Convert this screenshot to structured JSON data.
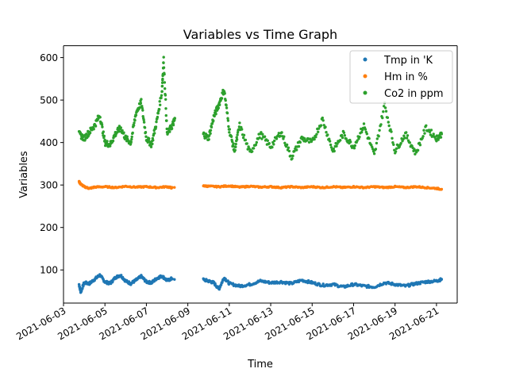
{
  "chart_data": {
    "type": "scatter",
    "title": "Variables vs Time Graph",
    "xlabel": "Time",
    "ylabel": "Variables",
    "x_range": [
      "2021-06-03T00:00",
      "2021-06-22T00:00"
    ],
    "ylim": [
      22,
      628
    ],
    "x_ticks": [
      "2021-06-03",
      "2021-06-05",
      "2021-06-07",
      "2021-06-09",
      "2021-06-11",
      "2021-06-13",
      "2021-06-15",
      "2021-06-17",
      "2021-06-19",
      "2021-06-21"
    ],
    "y_ticks": [
      100,
      200,
      300,
      400,
      500,
      600
    ],
    "grid": false,
    "legend_position": "upper right",
    "x_tick_rotation": 30,
    "data_gap": [
      "2021-06-08T09:00",
      "2021-06-09T16:00"
    ],
    "series": [
      {
        "name": "Tmp in 'K",
        "color": "#1f77b4",
        "points": [
          [
            "2021-06-03T18:00",
            66
          ],
          [
            "2021-06-03T20:00",
            48
          ],
          [
            "2021-06-04T00:00",
            70
          ],
          [
            "2021-06-04T06:00",
            68
          ],
          [
            "2021-06-04T12:00",
            78
          ],
          [
            "2021-06-04T18:00",
            88
          ],
          [
            "2021-06-05T00:00",
            72
          ],
          [
            "2021-06-05T06:00",
            68
          ],
          [
            "2021-06-05T12:00",
            82
          ],
          [
            "2021-06-05T18:00",
            88
          ],
          [
            "2021-06-06T00:00",
            74
          ],
          [
            "2021-06-06T06:00",
            68
          ],
          [
            "2021-06-06T12:00",
            76
          ],
          [
            "2021-06-06T18:00",
            85
          ],
          [
            "2021-06-07T00:00",
            72
          ],
          [
            "2021-06-07T06:00",
            70
          ],
          [
            "2021-06-07T12:00",
            80
          ],
          [
            "2021-06-07T18:00",
            86
          ],
          [
            "2021-06-08T00:00",
            75
          ],
          [
            "2021-06-08T06:00",
            80
          ],
          [
            "2021-06-09T18:00",
            77
          ],
          [
            "2021-06-10T00:00",
            74
          ],
          [
            "2021-06-10T06:00",
            70
          ],
          [
            "2021-06-10T12:00",
            55
          ],
          [
            "2021-06-10T18:00",
            82
          ],
          [
            "2021-06-11T00:00",
            68
          ],
          [
            "2021-06-11T12:00",
            62
          ],
          [
            "2021-06-12T00:00",
            66
          ],
          [
            "2021-06-12T12:00",
            74
          ],
          [
            "2021-06-13T00:00",
            70
          ],
          [
            "2021-06-13T12:00",
            72
          ],
          [
            "2021-06-14T00:00",
            68
          ],
          [
            "2021-06-14T12:00",
            76
          ],
          [
            "2021-06-15T00:00",
            70
          ],
          [
            "2021-06-15T12:00",
            64
          ],
          [
            "2021-06-16T00:00",
            66
          ],
          [
            "2021-06-16T12:00",
            60
          ],
          [
            "2021-06-17T00:00",
            66
          ],
          [
            "2021-06-17T12:00",
            62
          ],
          [
            "2021-06-18T00:00",
            60
          ],
          [
            "2021-06-18T12:00",
            70
          ],
          [
            "2021-06-19T00:00",
            66
          ],
          [
            "2021-06-19T12:00",
            62
          ],
          [
            "2021-06-20T00:00",
            68
          ],
          [
            "2021-06-20T12:00",
            72
          ],
          [
            "2021-06-21T00:00",
            74
          ],
          [
            "2021-06-21T06:00",
            78
          ]
        ]
      },
      {
        "name": "Hm in %",
        "color": "#ff7f0e",
        "points": [
          [
            "2021-06-03T18:00",
            308
          ],
          [
            "2021-06-03T20:00",
            302
          ],
          [
            "2021-06-04T00:00",
            296
          ],
          [
            "2021-06-04T06:00",
            292
          ],
          [
            "2021-06-04T12:00",
            295
          ],
          [
            "2021-06-05T00:00",
            296
          ],
          [
            "2021-06-05T12:00",
            294
          ],
          [
            "2021-06-06T00:00",
            297
          ],
          [
            "2021-06-06T12:00",
            295
          ],
          [
            "2021-06-07T00:00",
            296
          ],
          [
            "2021-06-07T12:00",
            294
          ],
          [
            "2021-06-08T00:00",
            296
          ],
          [
            "2021-06-08T06:00",
            293
          ],
          [
            "2021-06-09T18:00",
            298
          ],
          [
            "2021-06-10T00:00",
            297
          ],
          [
            "2021-06-10T12:00",
            296
          ],
          [
            "2021-06-11T00:00",
            298
          ],
          [
            "2021-06-11T12:00",
            295
          ],
          [
            "2021-06-12T00:00",
            297
          ],
          [
            "2021-06-12T12:00",
            295
          ],
          [
            "2021-06-13T00:00",
            296
          ],
          [
            "2021-06-13T12:00",
            294
          ],
          [
            "2021-06-14T00:00",
            296
          ],
          [
            "2021-06-14T12:00",
            294
          ],
          [
            "2021-06-15T00:00",
            296
          ],
          [
            "2021-06-15T12:00",
            294
          ],
          [
            "2021-06-16T00:00",
            296
          ],
          [
            "2021-06-16T12:00",
            294
          ],
          [
            "2021-06-17T00:00",
            296
          ],
          [
            "2021-06-17T12:00",
            294
          ],
          [
            "2021-06-18T00:00",
            296
          ],
          [
            "2021-06-18T12:00",
            294
          ],
          [
            "2021-06-19T00:00",
            296
          ],
          [
            "2021-06-19T12:00",
            294
          ],
          [
            "2021-06-20T00:00",
            296
          ],
          [
            "2021-06-20T12:00",
            294
          ],
          [
            "2021-06-21T00:00",
            292
          ],
          [
            "2021-06-21T06:00",
            290
          ]
        ]
      },
      {
        "name": "Co2 in ppm",
        "color": "#2ca02c",
        "points": [
          [
            "2021-06-03T18:00",
            420
          ],
          [
            "2021-06-04T00:00",
            410
          ],
          [
            "2021-06-04T06:00",
            425
          ],
          [
            "2021-06-04T12:00",
            440
          ],
          [
            "2021-06-04T18:00",
            465
          ],
          [
            "2021-06-05T00:00",
            400
          ],
          [
            "2021-06-05T06:00",
            395
          ],
          [
            "2021-06-05T12:00",
            420
          ],
          [
            "2021-06-05T18:00",
            435
          ],
          [
            "2021-06-06T00:00",
            410
          ],
          [
            "2021-06-06T06:00",
            400
          ],
          [
            "2021-06-06T12:00",
            470
          ],
          [
            "2021-06-06T18:00",
            495
          ],
          [
            "2021-06-07T00:00",
            410
          ],
          [
            "2021-06-07T06:00",
            395
          ],
          [
            "2021-06-07T12:00",
            450
          ],
          [
            "2021-06-07T18:00",
            520
          ],
          [
            "2021-06-07T20:00",
            595
          ],
          [
            "2021-06-08T00:00",
            420
          ],
          [
            "2021-06-08T06:00",
            440
          ],
          [
            "2021-06-08T09:00",
            455
          ],
          [
            "2021-06-09T18:00",
            420
          ],
          [
            "2021-06-10T00:00",
            410
          ],
          [
            "2021-06-10T06:00",
            460
          ],
          [
            "2021-06-10T12:00",
            490
          ],
          [
            "2021-06-10T18:00",
            525
          ],
          [
            "2021-06-11T00:00",
            430
          ],
          [
            "2021-06-11T06:00",
            380
          ],
          [
            "2021-06-11T12:00",
            440
          ],
          [
            "2021-06-12T00:00",
            375
          ],
          [
            "2021-06-12T12:00",
            420
          ],
          [
            "2021-06-13T00:00",
            390
          ],
          [
            "2021-06-13T12:00",
            425
          ],
          [
            "2021-06-14T00:00",
            365
          ],
          [
            "2021-06-14T12:00",
            410
          ],
          [
            "2021-06-15T00:00",
            400
          ],
          [
            "2021-06-15T12:00",
            455
          ],
          [
            "2021-06-16T00:00",
            380
          ],
          [
            "2021-06-16T12:00",
            420
          ],
          [
            "2021-06-17T00:00",
            390
          ],
          [
            "2021-06-17T12:00",
            440
          ],
          [
            "2021-06-18T00:00",
            370
          ],
          [
            "2021-06-18T12:00",
            490
          ],
          [
            "2021-06-19T00:00",
            380
          ],
          [
            "2021-06-19T12:00",
            420
          ],
          [
            "2021-06-20T00:00",
            375
          ],
          [
            "2021-06-20T12:00",
            435
          ],
          [
            "2021-06-21T00:00",
            410
          ],
          [
            "2021-06-21T06:00",
            420
          ]
        ]
      }
    ]
  }
}
